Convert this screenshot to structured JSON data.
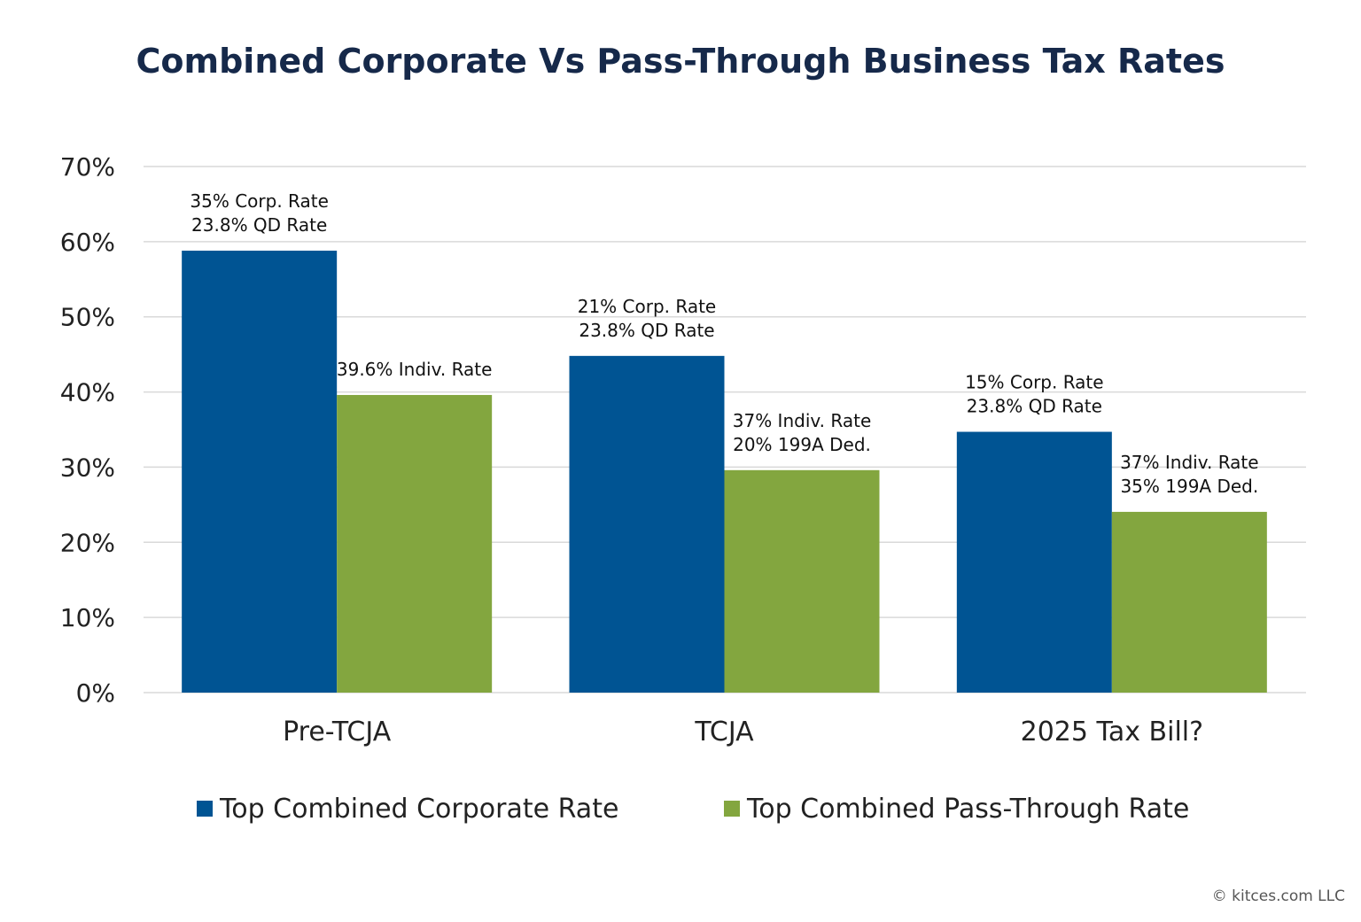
{
  "chart_data": {
    "type": "bar",
    "title": "Combined Corporate Vs Pass-Through Business Tax Rates",
    "xlabel": "",
    "ylabel": "",
    "ylim": [
      0,
      70
    ],
    "yticks": [
      "0%",
      "10%",
      "20%",
      "30%",
      "40%",
      "50%",
      "60%",
      "70%"
    ],
    "grid": true,
    "legend_position": "bottom",
    "categories": [
      "Pre-TCJA",
      "TCJA",
      "2025 Tax Bill?"
    ],
    "series": [
      {
        "name": "Top Combined Corporate Rate",
        "color": "#005493",
        "values": [
          58.8,
          44.8,
          34.7
        ],
        "annotations": [
          [
            "35% Corp. Rate",
            "23.8% QD Rate"
          ],
          [
            "21% Corp. Rate",
            "23.8% QD Rate"
          ],
          [
            "15% Corp. Rate",
            "23.8% QD Rate"
          ]
        ]
      },
      {
        "name": "Top Combined Pass-Through Rate",
        "color": "#83a63f",
        "values": [
          39.6,
          29.6,
          24.05
        ],
        "annotations": [
          [
            "39.6% Indiv. Rate"
          ],
          [
            "37% Indiv. Rate",
            "20% 199A Ded."
          ],
          [
            "37% Indiv. Rate",
            "35% 199A Ded."
          ]
        ]
      }
    ]
  },
  "footer": {
    "copyright": "© kitces.com LLC"
  }
}
